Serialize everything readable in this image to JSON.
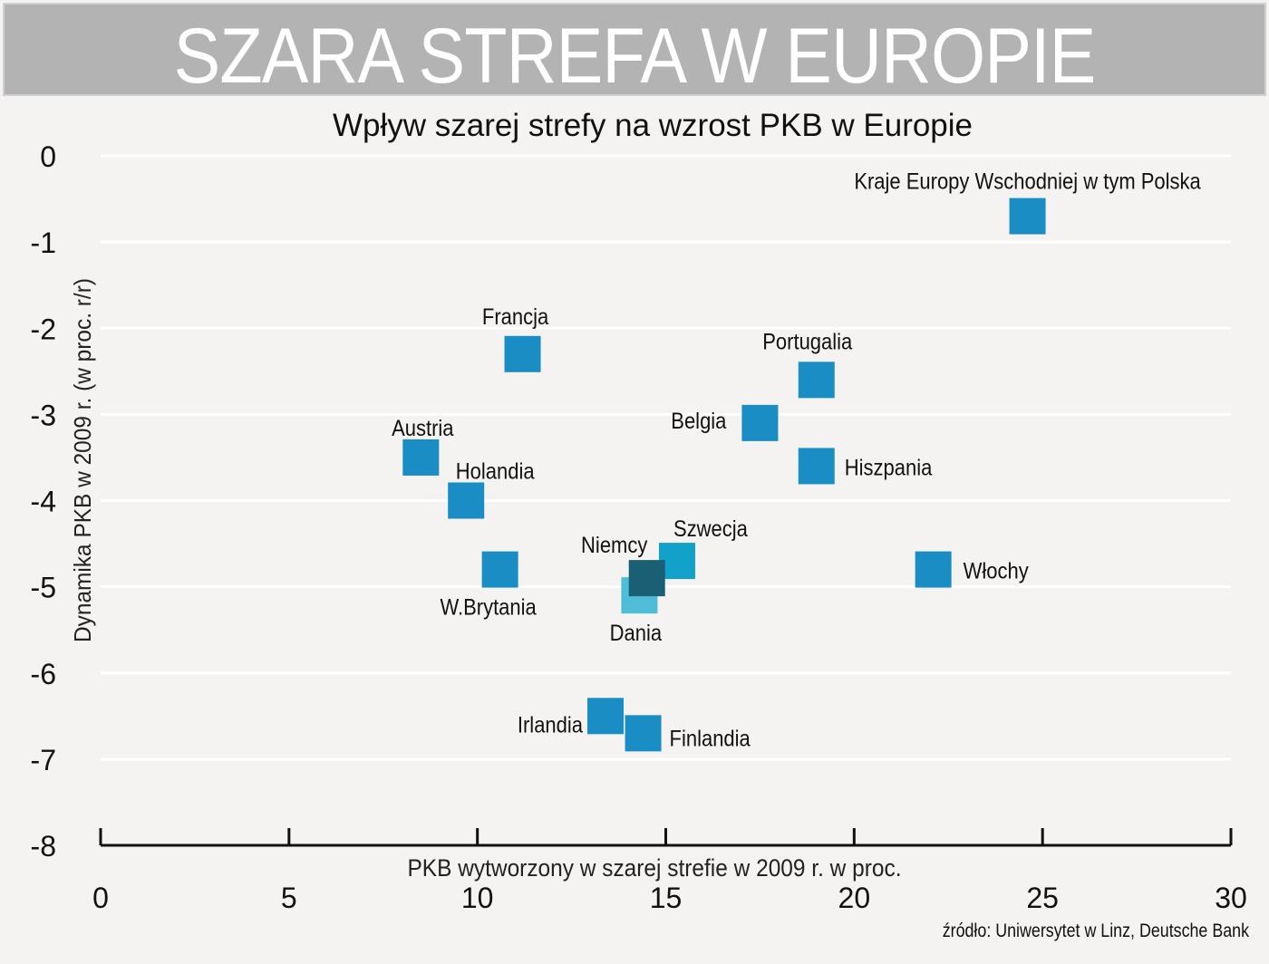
{
  "header": {
    "title": "SZARA STREFA W EUROPIE"
  },
  "source": "źródło: Uniwersytet w Linz, Deutsche Bank",
  "chart_data": {
    "type": "scatter",
    "title": "Wpływ szarej strefy na wzrost PKB w Europie",
    "xlabel": "PKB wytworzony w szarej strefie w 2009 r. w proc.",
    "ylabel": "Dynamika PKB w 2009 r. (w proc. r/r)",
    "xlim": [
      0,
      30
    ],
    "ylim": [
      -8,
      0
    ],
    "xticks": [
      "0",
      "5",
      "10",
      "15",
      "20",
      "25",
      "30"
    ],
    "yticks": [
      "0",
      "-1",
      "-2",
      "-3",
      "-4",
      "-5",
      "-6",
      "-7",
      "-8"
    ],
    "grid": "horizontal",
    "colors": {
      "default": "#1a8ec4",
      "Szwecja": "#12a2c9",
      "Niemcy": "#1a5f73",
      "Dania": "#4fbcd8",
      "grid": "#ffffff",
      "background": "#f4f3f1"
    },
    "points": [
      {
        "label": "Kraje Europy Wschodniej w tym Polska",
        "x": 24.6,
        "y": -0.7
      },
      {
        "label": "Francja",
        "x": 11.2,
        "y": -2.3
      },
      {
        "label": "Portugalia",
        "x": 19.0,
        "y": -2.6
      },
      {
        "label": "Belgia",
        "x": 17.5,
        "y": -3.1
      },
      {
        "label": "Hiszpania",
        "x": 19.0,
        "y": -3.6
      },
      {
        "label": "Austria",
        "x": 8.5,
        "y": -3.5
      },
      {
        "label": "Holandia",
        "x": 9.7,
        "y": -4.0
      },
      {
        "label": "W.Brytania",
        "x": 10.6,
        "y": -4.8
      },
      {
        "label": "Szwecja",
        "x": 15.3,
        "y": -4.7
      },
      {
        "label": "Dania",
        "x": 14.3,
        "y": -5.1
      },
      {
        "label": "Niemcy",
        "x": 14.5,
        "y": -4.9
      },
      {
        "label": "Włochy",
        "x": 22.1,
        "y": -4.8
      },
      {
        "label": "Irlandia",
        "x": 13.4,
        "y": -6.5
      },
      {
        "label": "Finlandia",
        "x": 14.4,
        "y": -6.7
      }
    ]
  }
}
